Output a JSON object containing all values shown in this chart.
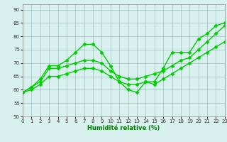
{
  "x": [
    0,
    1,
    2,
    3,
    4,
    5,
    6,
    7,
    8,
    9,
    10,
    11,
    12,
    13,
    14,
    15,
    16,
    17,
    18,
    19,
    20,
    21,
    22,
    23
  ],
  "line_top": [
    59,
    61,
    64,
    69,
    69,
    71,
    74,
    77,
    77,
    74,
    69,
    63,
    60,
    59,
    63,
    63,
    68,
    74,
    74,
    74,
    79,
    81,
    84,
    85
  ],
  "line_mid": [
    59,
    61,
    63,
    68,
    68,
    69,
    70,
    71,
    71,
    70,
    67,
    65,
    64,
    64,
    65,
    66,
    67,
    69,
    71,
    72,
    75,
    78,
    81,
    84
  ],
  "line_bot": [
    59,
    60,
    62,
    65,
    65,
    66,
    67,
    68,
    68,
    67,
    65,
    63,
    62,
    62,
    63,
    62,
    64,
    66,
    68,
    70,
    72,
    74,
    76,
    78
  ],
  "xlim": [
    0,
    23
  ],
  "ylim": [
    50,
    92
  ],
  "yticks": [
    50,
    55,
    60,
    65,
    70,
    75,
    80,
    85,
    90
  ],
  "xtick_labels": [
    "0",
    "1",
    "2",
    "3",
    "4",
    "5",
    "6",
    "7",
    "8",
    "9",
    "10",
    "11",
    "12",
    "13",
    "14",
    "15",
    "16",
    "17",
    "18",
    "19",
    "20",
    "21",
    "22",
    "23"
  ],
  "xlabel": "Humidité relative (%)",
  "line_color": "#00cc00",
  "bg_color": "#d8f0ee",
  "grid_color": "#99bbbb",
  "marker": "D",
  "marker_size": 2.5,
  "linewidth": 1.0,
  "label_fontsize": 5.0,
  "xlabel_fontsize": 6.0
}
